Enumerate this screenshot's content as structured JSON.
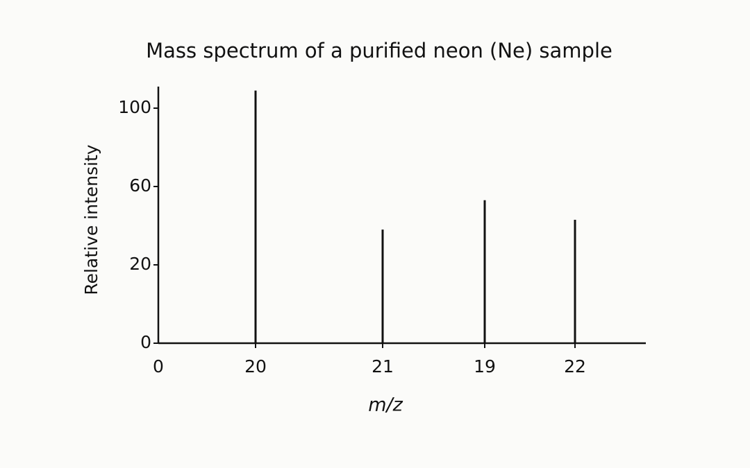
{
  "chart_data": {
    "type": "bar",
    "title": "Mass spectrum of a purified neon (Ne) sample",
    "x_label": "m/z",
    "y_label": "Relative intensity",
    "x_axis_start_label": 0,
    "categories": [
      "20",
      "21",
      "19",
      "22"
    ],
    "values": [
      109,
      38,
      53,
      43
    ],
    "color": "#111111",
    "ylim": [
      0,
      111
    ],
    "yticks": [
      0,
      20,
      60,
      100
    ],
    "grid": false
  }
}
